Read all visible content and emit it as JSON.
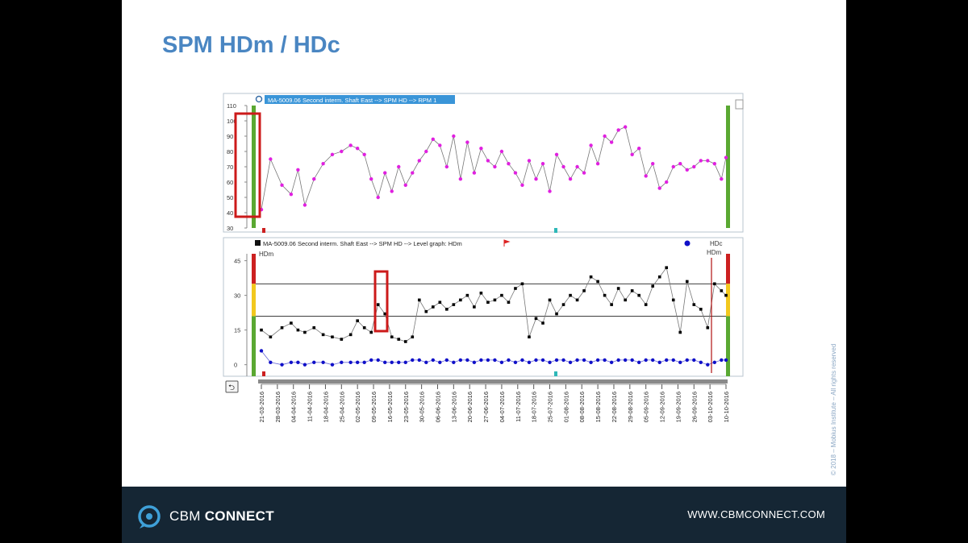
{
  "slide": {
    "title": "SPM HDm / HDc",
    "copyright": "© 2018 – Mobius Institute – All rights reserved"
  },
  "footer": {
    "brand_prefix": "CBM",
    "brand_suffix": "CONNECT",
    "url": "WWW.CBMCONNECT.COM"
  },
  "colors": {
    "title": "#4a86c2",
    "footer_bg": "#152634",
    "hdm_series": "#000000",
    "hdc_series": "#1010c8",
    "rpm_series": "#e020e0",
    "alarm_green": "#5aa832",
    "alarm_yellow": "#f2c81e",
    "alarm_red": "#cc2020",
    "highlight_box": "#cc1a1a"
  },
  "chart_data": [
    {
      "type": "line",
      "title": "MA-5009.06 Second interm. Shaft East --> SPM HD --> RPM 1",
      "ylim": [
        30,
        110
      ],
      "yticks": [
        30,
        40,
        50,
        60,
        70,
        80,
        90,
        100,
        110
      ],
      "grid": false,
      "markers": "dots",
      "series": [
        {
          "color": "#e020e0",
          "x": [
            "2016-03-21",
            "2016-03-25",
            "2016-03-30",
            "2016-04-03",
            "2016-04-06",
            "2016-04-09",
            "2016-04-13",
            "2016-04-17",
            "2016-04-21",
            "2016-04-25",
            "2016-04-29",
            "2016-05-02",
            "2016-05-05",
            "2016-05-08",
            "2016-05-11",
            "2016-05-14",
            "2016-05-17",
            "2016-05-20",
            "2016-05-23",
            "2016-05-26",
            "2016-05-29",
            "2016-06-01",
            "2016-06-04",
            "2016-06-07",
            "2016-06-10",
            "2016-06-13",
            "2016-06-16",
            "2016-06-19",
            "2016-06-22",
            "2016-06-25",
            "2016-06-28",
            "2016-07-01",
            "2016-07-04",
            "2016-07-07",
            "2016-07-10",
            "2016-07-13",
            "2016-07-16",
            "2016-07-19",
            "2016-07-22",
            "2016-07-25",
            "2016-07-28",
            "2016-07-31",
            "2016-08-03",
            "2016-08-06",
            "2016-08-09",
            "2016-08-12",
            "2016-08-15",
            "2016-08-18",
            "2016-08-21",
            "2016-08-24",
            "2016-08-27",
            "2016-08-30",
            "2016-09-02",
            "2016-09-05",
            "2016-09-08",
            "2016-09-11",
            "2016-09-14",
            "2016-09-17",
            "2016-09-20",
            "2016-09-23",
            "2016-09-26",
            "2016-09-29",
            "2016-10-02",
            "2016-10-05",
            "2016-10-08",
            "2016-10-10"
          ],
          "y": [
            42,
            75,
            58,
            52,
            68,
            45,
            62,
            72,
            78,
            80,
            84,
            82,
            78,
            62,
            50,
            66,
            54,
            70,
            58,
            66,
            74,
            80,
            88,
            84,
            70,
            90,
            62,
            86,
            66,
            82,
            74,
            70,
            80,
            72,
            66,
            58,
            74,
            62,
            72,
            54,
            78,
            70,
            62,
            70,
            66,
            84,
            72,
            90,
            86,
            94,
            96,
            78,
            82,
            64,
            72,
            56,
            60,
            70,
            72,
            68,
            70,
            74,
            74,
            72,
            62,
            76
          ]
        }
      ]
    },
    {
      "type": "line",
      "title": "MA-5009.06 Second interm. Shaft East --> SPM HD --> Level graph: HDm",
      "ylim": [
        -5,
        48
      ],
      "yticks": [
        0,
        15,
        30,
        45
      ],
      "reference_lines": [
        21,
        35
      ],
      "grid": false,
      "legend": [
        "HDc",
        "HDm"
      ],
      "legend_position": "top-right",
      "annotations": [
        "HDm",
        "HDc",
        "HDm"
      ],
      "series": [
        {
          "name": "HDm",
          "color": "#000000",
          "x": [
            "2016-03-21",
            "2016-03-25",
            "2016-03-30",
            "2016-04-03",
            "2016-04-06",
            "2016-04-09",
            "2016-04-13",
            "2016-04-17",
            "2016-04-21",
            "2016-04-25",
            "2016-04-29",
            "2016-05-02",
            "2016-05-05",
            "2016-05-08",
            "2016-05-11",
            "2016-05-14",
            "2016-05-17",
            "2016-05-20",
            "2016-05-23",
            "2016-05-26",
            "2016-05-29",
            "2016-06-01",
            "2016-06-04",
            "2016-06-07",
            "2016-06-10",
            "2016-06-13",
            "2016-06-16",
            "2016-06-19",
            "2016-06-22",
            "2016-06-25",
            "2016-06-28",
            "2016-07-01",
            "2016-07-04",
            "2016-07-07",
            "2016-07-10",
            "2016-07-13",
            "2016-07-16",
            "2016-07-19",
            "2016-07-22",
            "2016-07-25",
            "2016-07-28",
            "2016-07-31",
            "2016-08-03",
            "2016-08-06",
            "2016-08-09",
            "2016-08-12",
            "2016-08-15",
            "2016-08-18",
            "2016-08-21",
            "2016-08-24",
            "2016-08-27",
            "2016-08-30",
            "2016-09-02",
            "2016-09-05",
            "2016-09-08",
            "2016-09-11",
            "2016-09-14",
            "2016-09-17",
            "2016-09-20",
            "2016-09-23",
            "2016-09-26",
            "2016-09-29",
            "2016-10-02",
            "2016-10-05",
            "2016-10-08",
            "2016-10-10"
          ],
          "y": [
            15,
            12,
            16,
            18,
            15,
            14,
            16,
            13,
            12,
            11,
            13,
            19,
            16,
            14,
            26,
            22,
            12,
            11,
            10,
            12,
            28,
            23,
            25,
            27,
            24,
            26,
            28,
            30,
            25,
            31,
            27,
            28,
            30,
            27,
            33,
            35,
            12,
            20,
            18,
            28,
            22,
            26,
            30,
            28,
            32,
            38,
            36,
            30,
            26,
            33,
            28,
            32,
            30,
            26,
            34,
            38,
            42,
            28,
            14,
            36,
            26,
            24,
            16,
            35,
            32,
            30
          ]
        },
        {
          "name": "HDc",
          "color": "#1010c8",
          "x": [
            "2016-03-21",
            "2016-03-25",
            "2016-03-30",
            "2016-04-03",
            "2016-04-06",
            "2016-04-09",
            "2016-04-13",
            "2016-04-17",
            "2016-04-21",
            "2016-04-25",
            "2016-04-29",
            "2016-05-02",
            "2016-05-05",
            "2016-05-08",
            "2016-05-11",
            "2016-05-14",
            "2016-05-17",
            "2016-05-20",
            "2016-05-23",
            "2016-05-26",
            "2016-05-29",
            "2016-06-01",
            "2016-06-04",
            "2016-06-07",
            "2016-06-10",
            "2016-06-13",
            "2016-06-16",
            "2016-06-19",
            "2016-06-22",
            "2016-06-25",
            "2016-06-28",
            "2016-07-01",
            "2016-07-04",
            "2016-07-07",
            "2016-07-10",
            "2016-07-13",
            "2016-07-16",
            "2016-07-19",
            "2016-07-22",
            "2016-07-25",
            "2016-07-28",
            "2016-07-31",
            "2016-08-03",
            "2016-08-06",
            "2016-08-09",
            "2016-08-12",
            "2016-08-15",
            "2016-08-18",
            "2016-08-21",
            "2016-08-24",
            "2016-08-27",
            "2016-08-30",
            "2016-09-02",
            "2016-09-05",
            "2016-09-08",
            "2016-09-11",
            "2016-09-14",
            "2016-09-17",
            "2016-09-20",
            "2016-09-23",
            "2016-09-26",
            "2016-09-29",
            "2016-10-02",
            "2016-10-05",
            "2016-10-08",
            "2016-10-10"
          ],
          "y": [
            6,
            1,
            0,
            1,
            1,
            0,
            1,
            1,
            0,
            1,
            1,
            1,
            1,
            2,
            2,
            1,
            1,
            1,
            1,
            2,
            2,
            1,
            2,
            1,
            2,
            1,
            2,
            2,
            1,
            2,
            2,
            2,
            1,
            2,
            1,
            2,
            1,
            2,
            2,
            1,
            2,
            2,
            1,
            2,
            2,
            1,
            2,
            2,
            1,
            2,
            2,
            2,
            1,
            2,
            2,
            1,
            2,
            2,
            1,
            2,
            2,
            1,
            0,
            1,
            2,
            2
          ]
        }
      ]
    }
  ],
  "x_axis": {
    "tick_labels": [
      "21-03-2016",
      "28-03-2016",
      "04-04-2016",
      "11-04-2016",
      "18-04-2016",
      "25-04-2016",
      "02-05-2016",
      "09-05-2016",
      "16-05-2016",
      "23-05-2016",
      "30-05-2016",
      "06-06-2016",
      "13-06-2016",
      "20-06-2016",
      "27-06-2016",
      "04-07-2016",
      "11-07-2016",
      "18-07-2016",
      "25-07-2016",
      "01-08-2016",
      "08-08-2016",
      "15-08-2016",
      "22-08-2016",
      "29-08-2016",
      "05-09-2016",
      "12-09-2016",
      "19-09-2016",
      "26-09-2016",
      "03-10-2016",
      "10-10-2016"
    ]
  }
}
